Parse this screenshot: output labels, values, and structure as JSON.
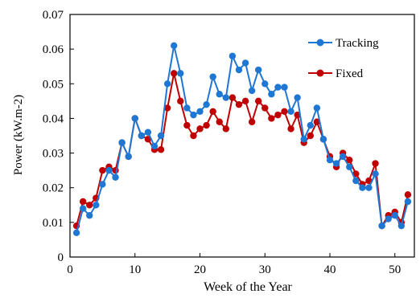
{
  "chart_data": {
    "type": "line",
    "xlabel": "Week of the Year",
    "ylabel": "Power (kW.m-2)",
    "xlim": [
      0,
      53
    ],
    "ylim": [
      0,
      0.07
    ],
    "x_ticks": [
      0,
      10,
      20,
      30,
      40,
      50
    ],
    "y_ticks": [
      0,
      0.01,
      0.02,
      0.03,
      0.04,
      0.05,
      0.06,
      0.07
    ],
    "y_tick_labels": [
      "0",
      "0.01",
      "0.02",
      "0.03",
      "0.04",
      "0.05",
      "0.06",
      "0.07"
    ],
    "grid": false,
    "legend_position": "top-right",
    "x": [
      1,
      2,
      3,
      4,
      5,
      6,
      7,
      8,
      9,
      10,
      11,
      12,
      13,
      14,
      15,
      16,
      17,
      18,
      19,
      20,
      21,
      22,
      23,
      24,
      25,
      26,
      27,
      28,
      29,
      30,
      31,
      32,
      33,
      34,
      35,
      36,
      37,
      38,
      39,
      40,
      41,
      42,
      43,
      44,
      45,
      46,
      47,
      48,
      49,
      50,
      51,
      52
    ],
    "series": [
      {
        "name": "Tracking",
        "color": "#1f77d4",
        "values": [
          0.007,
          0.014,
          0.012,
          0.015,
          0.021,
          0.025,
          0.023,
          0.033,
          0.029,
          0.04,
          0.035,
          0.036,
          0.032,
          0.035,
          0.05,
          0.061,
          0.053,
          0.043,
          0.041,
          0.042,
          0.044,
          0.052,
          0.047,
          0.046,
          0.058,
          0.054,
          0.056,
          0.048,
          0.054,
          0.05,
          0.047,
          0.049,
          0.049,
          0.042,
          0.046,
          0.034,
          0.038,
          0.043,
          0.034,
          0.028,
          0.027,
          0.029,
          0.026,
          0.022,
          0.02,
          0.02,
          0.024,
          0.009,
          0.011,
          0.012,
          0.009,
          0.016
        ]
      },
      {
        "name": "Fixed",
        "color": "#c00000",
        "values": [
          0.009,
          0.016,
          0.015,
          0.017,
          0.025,
          0.026,
          0.025,
          0.033,
          0.029,
          0.04,
          0.035,
          0.034,
          0.031,
          0.031,
          0.043,
          0.053,
          0.045,
          0.038,
          0.035,
          0.037,
          0.038,
          0.042,
          0.039,
          0.037,
          0.046,
          0.044,
          0.045,
          0.039,
          0.045,
          0.043,
          0.04,
          0.041,
          0.042,
          0.037,
          0.041,
          0.033,
          0.035,
          0.039,
          0.034,
          0.029,
          0.026,
          0.03,
          0.028,
          0.024,
          0.021,
          0.022,
          0.027,
          0.009,
          0.012,
          0.013,
          0.01,
          0.018
        ]
      }
    ]
  }
}
